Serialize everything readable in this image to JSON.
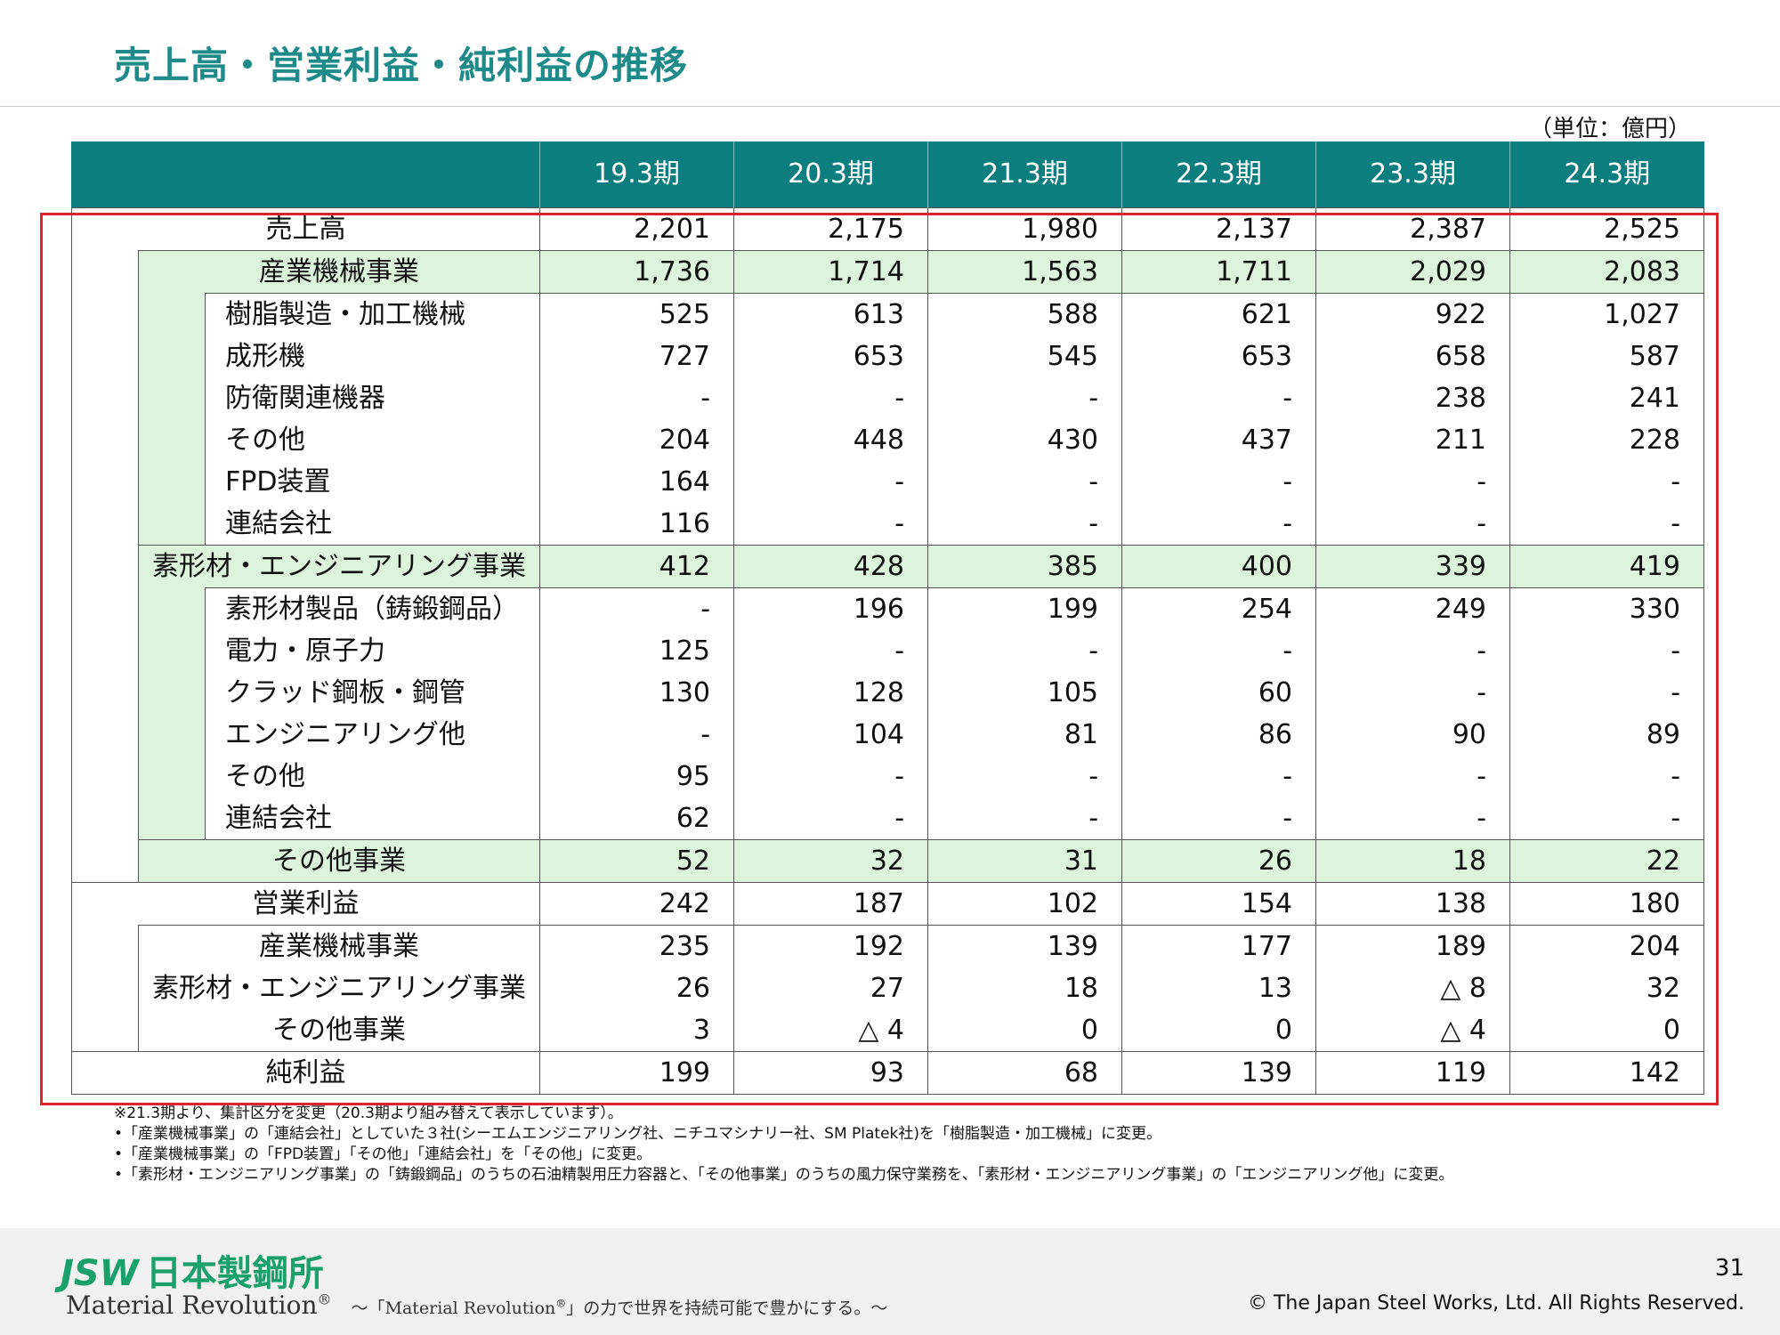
{
  "title": "売上高・営業利益・純利益の推移",
  "unit": "（単位：億円）",
  "columns": [
    "19.3期",
    "20.3期",
    "21.3期",
    "22.3期",
    "23.3期",
    "24.3期"
  ],
  "rows": [
    {
      "label": "売上高",
      "level": 0,
      "align": "center",
      "hl": false,
      "top": false,
      "values": [
        "2,201",
        "2,175",
        "1,980",
        "2,137",
        "2,387",
        "2,525"
      ]
    },
    {
      "label": "産業機械事業",
      "level": 1,
      "align": "center",
      "hl": true,
      "top": true,
      "values": [
        "1,736",
        "1,714",
        "1,563",
        "1,711",
        "2,029",
        "2,083"
      ]
    },
    {
      "label": "樹脂製造・加工機械",
      "level": 2,
      "align": "left",
      "hl": false,
      "top": true,
      "values": [
        "525",
        "613",
        "588",
        "621",
        "922",
        "1,027"
      ]
    },
    {
      "label": "成形機",
      "level": 2,
      "align": "left",
      "hl": false,
      "top": false,
      "values": [
        "727",
        "653",
        "545",
        "653",
        "658",
        "587"
      ]
    },
    {
      "label": "防衛関連機器",
      "level": 2,
      "align": "left",
      "hl": false,
      "top": false,
      "values": [
        "-",
        "-",
        "-",
        "-",
        "238",
        "241"
      ]
    },
    {
      "label": "その他",
      "level": 2,
      "align": "left",
      "hl": false,
      "top": false,
      "values": [
        "204",
        "448",
        "430",
        "437",
        "211",
        "228"
      ]
    },
    {
      "label": "FPD装置",
      "level": 2,
      "align": "left",
      "hl": false,
      "top": false,
      "values": [
        "164",
        "-",
        "-",
        "-",
        "-",
        "-"
      ]
    },
    {
      "label": "連結会社",
      "level": 2,
      "align": "left",
      "hl": false,
      "top": false,
      "values": [
        "116",
        "-",
        "-",
        "-",
        "-",
        "-"
      ]
    },
    {
      "label": "素形材・エンジニアリング事業",
      "level": 1,
      "align": "center",
      "hl": true,
      "top": true,
      "values": [
        "412",
        "428",
        "385",
        "400",
        "339",
        "419"
      ]
    },
    {
      "label": "素形材製品（鋳鍛鋼品）",
      "level": 2,
      "align": "left",
      "hl": false,
      "top": true,
      "values": [
        "-",
        "196",
        "199",
        "254",
        "249",
        "330"
      ]
    },
    {
      "label": "電力・原子力",
      "level": 2,
      "align": "left",
      "hl": false,
      "top": false,
      "values": [
        "125",
        "-",
        "-",
        "-",
        "-",
        "-"
      ]
    },
    {
      "label": "クラッド鋼板・鋼管",
      "level": 2,
      "align": "left",
      "hl": false,
      "top": false,
      "values": [
        "130",
        "128",
        "105",
        "60",
        "-",
        "-"
      ]
    },
    {
      "label": "エンジニアリング他",
      "level": 2,
      "align": "left",
      "hl": false,
      "top": false,
      "values": [
        "-",
        "104",
        "81",
        "86",
        "90",
        "89"
      ]
    },
    {
      "label": "その他",
      "level": 2,
      "align": "left",
      "hl": false,
      "top": false,
      "values": [
        "95",
        "-",
        "-",
        "-",
        "-",
        "-"
      ]
    },
    {
      "label": "連結会社",
      "level": 2,
      "align": "left",
      "hl": false,
      "top": false,
      "values": [
        "62",
        "-",
        "-",
        "-",
        "-",
        "-"
      ]
    },
    {
      "label": "その他事業",
      "level": 1,
      "align": "center",
      "hl": true,
      "top": true,
      "values": [
        "52",
        "32",
        "31",
        "26",
        "18",
        "22"
      ]
    },
    {
      "label": "営業利益",
      "level": 0,
      "align": "center",
      "hl": false,
      "top": true,
      "values": [
        "242",
        "187",
        "102",
        "154",
        "138",
        "180"
      ]
    },
    {
      "label": "産業機械事業",
      "level": 1,
      "align": "center",
      "hl": false,
      "top": true,
      "values": [
        "235",
        "192",
        "139",
        "177",
        "189",
        "204"
      ]
    },
    {
      "label": "素形材・エンジニアリング事業",
      "level": 1,
      "align": "center",
      "hl": false,
      "top": false,
      "values": [
        "26",
        "27",
        "18",
        "13",
        "△ 8",
        "32"
      ]
    },
    {
      "label": "その他事業",
      "level": 1,
      "align": "center",
      "hl": false,
      "top": false,
      "values": [
        "3",
        "△ 4",
        "0",
        "0",
        "△ 4",
        "0"
      ]
    },
    {
      "label": "純利益",
      "level": 0,
      "align": "center",
      "hl": false,
      "top": true,
      "values": [
        "199",
        "93",
        "68",
        "139",
        "119",
        "142"
      ]
    }
  ],
  "notes": [
    "※21.3期より、集計区分を変更（20.3期より組み替えて表示しています）。",
    "•「産業機械事業」の「連結会社」としていた３社(シーエムエンジニアリング社、ニチユマシナリー社、SM Platek社)を「樹脂製造・加工機械」に変更。",
    "•「産業機械事業」の「FPD装置」「その他」「連結会社」を「その他」に変更。",
    "•「素形材・エンジニアリング事業」の「鋳鍛鋼品」のうちの石油精製用圧力容器と、「その他事業」のうちの風力保守業務を、「素形材・エンジニアリング事業」の「エンジニアリング他」に変更。"
  ],
  "footer": {
    "logo_latin": "JSW",
    "logo_jp": "日本製鋼所",
    "tagline": "Material Revolution",
    "tagline_mark": "®",
    "tagline_sub_pre": "～「Material Revolution",
    "tagline_sub_post": "」の力で世界を持続可能で豊かにする。～",
    "page_number": "31",
    "copyright": "© The Japan Steel Works, Ltd. All Rights Reserved."
  },
  "colors": {
    "header_bg": "#0d7e7f",
    "title": "#1f8a8a",
    "highlight": "#dcf3dc",
    "frame": "#d9262c",
    "logo": "#1aa06b"
  }
}
